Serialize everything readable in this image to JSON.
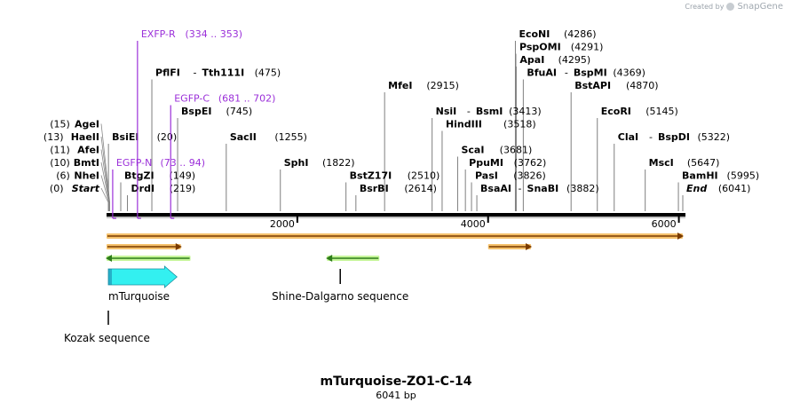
{
  "credit": {
    "prefix": "Created by",
    "brand": "SnapGene"
  },
  "plasmid": {
    "name": "mTurquoise-ZO1-C-14",
    "size_label": "6041 bp",
    "length": 6041
  },
  "colors": {
    "site": "#000000",
    "primer": "#9b30d9",
    "tick": "#000000",
    "cds_fill": "#33f0f0",
    "cds_stroke": "#1a8fa0",
    "orf_fill": "#f5c16c",
    "orf_line": "#7a3b00",
    "green_fill": "#c6f59a",
    "green_line": "#2e7d1a"
  },
  "ruler": {
    "ticks": [
      {
        "value": 2000,
        "label": "2000"
      },
      {
        "value": 4000,
        "label": "4000"
      },
      {
        "value": 6000,
        "label": "6000"
      }
    ]
  },
  "sites": [
    {
      "name": "EcoNI",
      "pos": "(4286)",
      "bp": 4286,
      "row": 0,
      "side": "left"
    },
    {
      "name": "PspOMI",
      "pos": "(4291)",
      "bp": 4291,
      "row": 1,
      "side": "left"
    },
    {
      "name": "ApaI",
      "pos": "(4295)",
      "bp": 4295,
      "row": 2,
      "side": "left"
    },
    {
      "name": "BfuAI",
      "name2": "BspMI",
      "pos": "(4369)",
      "bp": 4369,
      "row": 3,
      "side": "left"
    },
    {
      "name": "PflFI",
      "name2": "Tth111I",
      "pos": "(475)",
      "bp": 475,
      "row": 3,
      "side": "left"
    },
    {
      "name": "MfeI",
      "pos": "(2915)",
      "bp": 2915,
      "row": 4,
      "side": "left"
    },
    {
      "name": "BstAPI",
      "pos": "(4870)",
      "bp": 4870,
      "row": 4,
      "side": "left"
    },
    {
      "name": "BspEI",
      "pos": "(745)",
      "bp": 745,
      "row": 6,
      "side": "left"
    },
    {
      "name": "NsiI",
      "name2": "BsmI",
      "pos": "(3413)",
      "bp": 3413,
      "row": 6,
      "side": "left"
    },
    {
      "name": "EcoRI",
      "pos": "(5145)",
      "bp": 5145,
      "row": 6,
      "side": "left"
    },
    {
      "name": "AgeI",
      "pos": "(15)",
      "bp": 15,
      "row": 7,
      "side": "right"
    },
    {
      "name": "HindIII",
      "pos": "(3518)",
      "bp": 3518,
      "row": 7,
      "side": "left"
    },
    {
      "name": "HaeII",
      "pos": "(13)",
      "bp": 13,
      "row": 8,
      "side": "right"
    },
    {
      "name": "BsiEI",
      "pos": "(20)",
      "bp": 20,
      "row": 8,
      "side": "left"
    },
    {
      "name": "SacII",
      "pos": "(1255)",
      "bp": 1255,
      "row": 8,
      "side": "left"
    },
    {
      "name": "ClaI",
      "name2": "BspDI",
      "pos": "(5322)",
      "bp": 5322,
      "row": 8,
      "side": "left"
    },
    {
      "name": "AfeI",
      "pos": "(11)",
      "bp": 11,
      "row": 9,
      "side": "right"
    },
    {
      "name": "ScaI",
      "pos": "(3681)",
      "bp": 3681,
      "row": 9,
      "side": "left"
    },
    {
      "name": "BmtI",
      "pos": "(10)",
      "bp": 10,
      "row": 10,
      "side": "right"
    },
    {
      "name": "SphI",
      "pos": "(1822)",
      "bp": 1822,
      "row": 10,
      "side": "left"
    },
    {
      "name": "PpuMI",
      "pos": "(3762)",
      "bp": 3762,
      "row": 10,
      "side": "left"
    },
    {
      "name": "MscI",
      "pos": "(5647)",
      "bp": 5647,
      "row": 10,
      "side": "left"
    },
    {
      "name": "NheI",
      "pos": "(6)",
      "bp": 6,
      "row": 11,
      "side": "right"
    },
    {
      "name": "BtgZI",
      "pos": "(149)",
      "bp": 149,
      "row": 11,
      "side": "left"
    },
    {
      "name": "BstZ17I",
      "pos": "(2510)",
      "bp": 2510,
      "row": 11,
      "side": "left"
    },
    {
      "name": "PasI",
      "pos": "(3826)",
      "bp": 3826,
      "row": 11,
      "side": "left"
    },
    {
      "name": "BamHI",
      "pos": "(5995)",
      "bp": 5995,
      "row": 11,
      "side": "left"
    },
    {
      "name": "Start",
      "pos": "(0)",
      "bp": 0,
      "row": 12,
      "side": "right",
      "italic": true
    },
    {
      "name": "DrdI",
      "pos": "(219)",
      "bp": 219,
      "row": 12,
      "side": "left"
    },
    {
      "name": "BsrBI",
      "pos": "(2614)",
      "bp": 2614,
      "row": 12,
      "side": "left"
    },
    {
      "name": "BsaAI",
      "name2": "SnaBI",
      "pos": "(3882)",
      "bp": 3882,
      "row": 12,
      "side": "left"
    },
    {
      "name": "End",
      "pos": "(6041)",
      "bp": 6041,
      "row": 12,
      "side": "left",
      "italic": true
    }
  ],
  "primers": [
    {
      "name": "EXFP-R",
      "range": "(334 .. 353)",
      "bp": 343,
      "row": 0
    },
    {
      "name": "EGFP-C",
      "range": "(681 .. 702)",
      "bp": 691,
      "row": 5
    },
    {
      "name": "EGFP-N",
      "range": "(73 .. 94)",
      "bp": 83,
      "row": 10
    }
  ],
  "features": {
    "full_orf": {
      "start": 0,
      "end": 6041,
      "type": "orf",
      "dir": "forward"
    },
    "orfs": [
      {
        "start": 0,
        "end": 780,
        "type": "orf",
        "dir": "forward"
      },
      {
        "start": 0,
        "end": 880,
        "type": "green",
        "dir": "reverse"
      },
      {
        "start": 2310,
        "end": 2860,
        "type": "green",
        "dir": "reverse"
      },
      {
        "start": 4000,
        "end": 4450,
        "type": "orf",
        "dir": "forward"
      }
    ],
    "cds": {
      "name": "mTurquoise",
      "start": 0,
      "end": 720
    },
    "markers": [
      {
        "name": "Shine-Dalgarno sequence",
        "bp": 2450
      },
      {
        "name": "Kozak sequence",
        "bp": 0
      }
    ]
  }
}
